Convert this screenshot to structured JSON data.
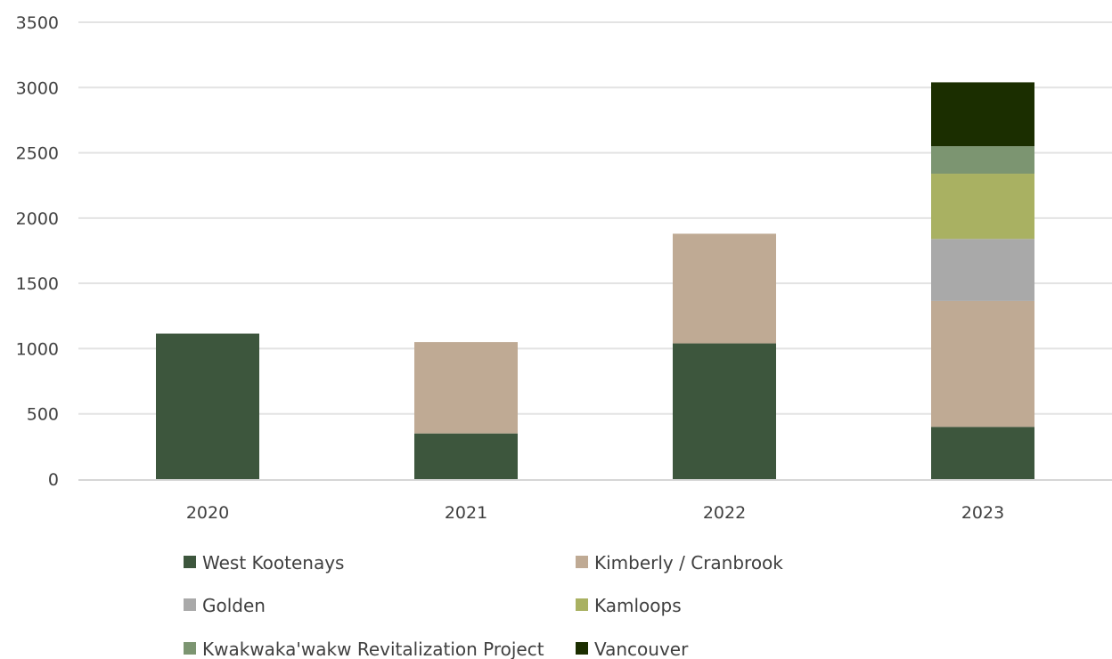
{
  "chart_data": {
    "type": "bar",
    "stacked": true,
    "categories": [
      "2020",
      "2021",
      "2022",
      "2023"
    ],
    "series": [
      {
        "name": "West Kootenays",
        "color": "#3d563d",
        "values": [
          1115,
          350,
          1040,
          400
        ]
      },
      {
        "name": "Kimberly / Cranbrook",
        "color": "#bfaa94",
        "values": [
          0,
          700,
          840,
          965
        ]
      },
      {
        "name": "Golden",
        "color": "#a9a9a9",
        "values": [
          0,
          0,
          0,
          475
        ]
      },
      {
        "name": "Kamloops",
        "color": "#a9b162",
        "values": [
          0,
          0,
          0,
          500
        ]
      },
      {
        "name": "Kwakwaka'wakw Revitalization Project",
        "color": "#7c9571",
        "values": [
          0,
          0,
          0,
          210
        ]
      },
      {
        "name": "Vancouver",
        "color": "#1b2e00",
        "values": [
          0,
          0,
          0,
          490
        ]
      }
    ],
    "ylim": [
      0,
      3500
    ],
    "yticks": [
      "0",
      "500",
      "1000",
      "1500",
      "2000",
      "2500",
      "3000",
      "3500"
    ],
    "grid": true,
    "legend_position": "bottom",
    "title": "",
    "xlabel": "",
    "ylabel": ""
  }
}
